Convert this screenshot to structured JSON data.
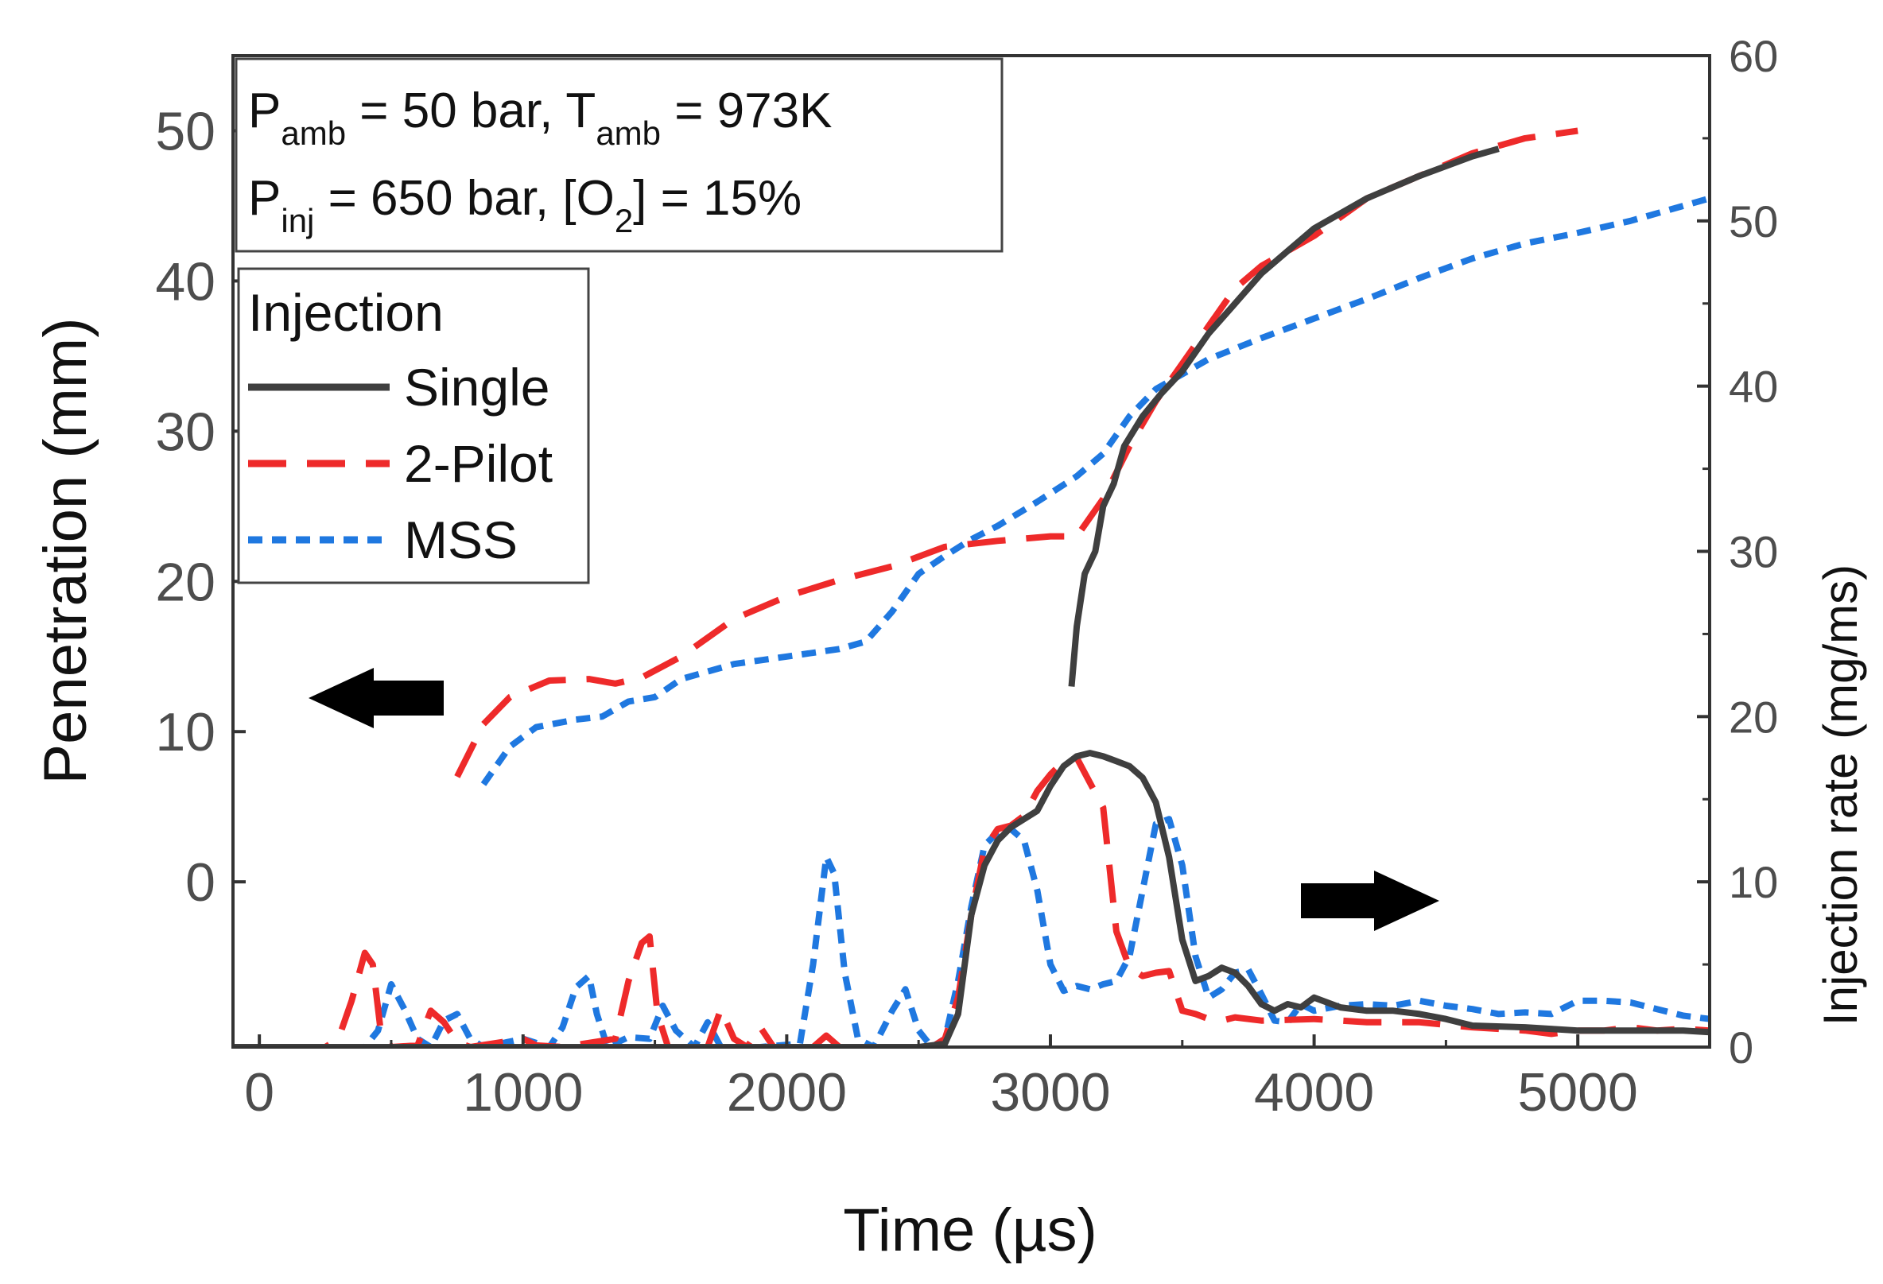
{
  "chart_data": {
    "type": "line",
    "title": "",
    "xlabel": "Time (µs)",
    "ylabel_left": "Penetration (mm)",
    "ylabel_right": "Injection rate (mg/ms)",
    "xlim": [
      -100,
      5500
    ],
    "ylim_left": [
      -11,
      55
    ],
    "ylim_right": [
      0,
      60
    ],
    "x_ticks": [
      0,
      1000,
      2000,
      3000,
      4000,
      5000
    ],
    "y_left_ticks": [
      0,
      10,
      20,
      30,
      40,
      50
    ],
    "y_right_ticks": [
      0,
      10,
      20,
      30,
      40,
      50,
      60
    ],
    "grid": false,
    "conditions": {
      "line1": {
        "a": "P",
        "a_sub": "amb",
        "b": " = 50 bar, T",
        "b_sub": "amb",
        "c": " = 973K"
      },
      "line2": {
        "a": "P",
        "a_sub": "inj",
        "b": " = 650 bar, [O",
        "b_sub": "2",
        "c": "] = 15%"
      }
    },
    "legend": {
      "title": "Injection",
      "position": "upper-left",
      "entries": [
        {
          "name": "Single",
          "color": "#3f3f3f",
          "dash": "solid"
        },
        {
          "name": "2-Pilot",
          "color": "#ee2a2a",
          "dash": "dashed"
        },
        {
          "name": "MSS",
          "color": "#1f78e0",
          "dash": "dotted"
        }
      ]
    },
    "annotations": [
      {
        "type": "arrow",
        "direction": "left",
        "meaning": "left axis"
      },
      {
        "type": "arrow",
        "direction": "right",
        "meaning": "right axis"
      }
    ],
    "series": [
      {
        "name": "Single",
        "axis": "left",
        "kind": "penetration",
        "points": [
          [
            3080,
            13
          ],
          [
            3100,
            17
          ],
          [
            3130,
            20.5
          ],
          [
            3170,
            22
          ],
          [
            3200,
            25
          ],
          [
            3240,
            26.5
          ],
          [
            3280,
            29
          ],
          [
            3350,
            31
          ],
          [
            3420,
            32.5
          ],
          [
            3500,
            34
          ],
          [
            3600,
            36.5
          ],
          [
            3700,
            38.5
          ],
          [
            3800,
            40.5
          ],
          [
            3900,
            42
          ],
          [
            4000,
            43.5
          ],
          [
            4200,
            45.5
          ],
          [
            4400,
            47
          ],
          [
            4600,
            48.3
          ],
          [
            4700,
            48.8
          ]
        ]
      },
      {
        "name": "2-Pilot",
        "axis": "left",
        "kind": "penetration",
        "points": [
          [
            750,
            7
          ],
          [
            850,
            10.5
          ],
          [
            950,
            12.3
          ],
          [
            1100,
            13.4
          ],
          [
            1250,
            13.5
          ],
          [
            1350,
            13.2
          ],
          [
            1450,
            13.6
          ],
          [
            1600,
            15
          ],
          [
            1800,
            17.5
          ],
          [
            2000,
            19
          ],
          [
            2200,
            20.1
          ],
          [
            2400,
            21
          ],
          [
            2600,
            22.3
          ],
          [
            2800,
            22.7
          ],
          [
            3000,
            23
          ],
          [
            3100,
            23
          ],
          [
            3200,
            25.5
          ],
          [
            3300,
            29
          ],
          [
            3400,
            32
          ],
          [
            3500,
            34.5
          ],
          [
            3600,
            37
          ],
          [
            3700,
            39.5
          ],
          [
            3800,
            41
          ],
          [
            4000,
            43
          ],
          [
            4200,
            45.5
          ],
          [
            4400,
            47
          ],
          [
            4600,
            48.5
          ],
          [
            4800,
            49.5
          ],
          [
            5000,
            50
          ]
        ]
      },
      {
        "name": "MSS",
        "axis": "left",
        "kind": "penetration",
        "points": [
          [
            850,
            6.5
          ],
          [
            950,
            9
          ],
          [
            1050,
            10.3
          ],
          [
            1200,
            10.8
          ],
          [
            1300,
            11
          ],
          [
            1400,
            12
          ],
          [
            1500,
            12.3
          ],
          [
            1600,
            13.5
          ],
          [
            1800,
            14.5
          ],
          [
            2000,
            15
          ],
          [
            2200,
            15.5
          ],
          [
            2300,
            16
          ],
          [
            2400,
            18
          ],
          [
            2500,
            20.5
          ],
          [
            2600,
            21.7
          ],
          [
            2700,
            22.8
          ],
          [
            2800,
            23.7
          ],
          [
            2950,
            25.3
          ],
          [
            3100,
            27
          ],
          [
            3200,
            28.5
          ],
          [
            3300,
            31
          ],
          [
            3400,
            32.8
          ],
          [
            3500,
            33.8
          ],
          [
            3600,
            34.8
          ],
          [
            3800,
            36.2
          ],
          [
            4000,
            37.5
          ],
          [
            4200,
            38.8
          ],
          [
            4400,
            40.2
          ],
          [
            4600,
            41.5
          ],
          [
            4800,
            42.5
          ],
          [
            5000,
            43.2
          ],
          [
            5200,
            44
          ],
          [
            5500,
            45.5
          ]
        ]
      },
      {
        "name": "Single",
        "axis": "right",
        "kind": "rate",
        "points": [
          [
            -100,
            0
          ],
          [
            2500,
            0
          ],
          [
            2600,
            0.2
          ],
          [
            2650,
            2
          ],
          [
            2700,
            8
          ],
          [
            2750,
            11
          ],
          [
            2800,
            12.5
          ],
          [
            2850,
            13.3
          ],
          [
            2900,
            13.8
          ],
          [
            2950,
            14.3
          ],
          [
            3000,
            15.8
          ],
          [
            3050,
            17
          ],
          [
            3100,
            17.6
          ],
          [
            3150,
            17.8
          ],
          [
            3200,
            17.6
          ],
          [
            3250,
            17.3
          ],
          [
            3300,
            17
          ],
          [
            3350,
            16.3
          ],
          [
            3400,
            14.8
          ],
          [
            3450,
            11.5
          ],
          [
            3500,
            6.5
          ],
          [
            3550,
            4
          ],
          [
            3600,
            4.3
          ],
          [
            3650,
            4.8
          ],
          [
            3700,
            4.5
          ],
          [
            3750,
            3.7
          ],
          [
            3800,
            2.6
          ],
          [
            3850,
            2.2
          ],
          [
            3900,
            2.6
          ],
          [
            3950,
            2.4
          ],
          [
            4000,
            3
          ],
          [
            4100,
            2.4
          ],
          [
            4200,
            2.2
          ],
          [
            4300,
            2.2
          ],
          [
            4400,
            2
          ],
          [
            4500,
            1.7
          ],
          [
            4600,
            1.3
          ],
          [
            4800,
            1.2
          ],
          [
            5000,
            1
          ],
          [
            5200,
            1
          ],
          [
            5400,
            1
          ],
          [
            5500,
            0.9
          ]
        ]
      },
      {
        "name": "2-Pilot",
        "axis": "right",
        "kind": "rate",
        "points": [
          [
            -100,
            0
          ],
          [
            250,
            0
          ],
          [
            300,
            0.5
          ],
          [
            350,
            2.8
          ],
          [
            400,
            5.7
          ],
          [
            430,
            5
          ],
          [
            460,
            1
          ],
          [
            500,
            0
          ],
          [
            600,
            0.1
          ],
          [
            650,
            2.2
          ],
          [
            700,
            1.5
          ],
          [
            750,
            0.3
          ],
          [
            800,
            0
          ],
          [
            1000,
            0.5
          ],
          [
            1050,
            0.1
          ],
          [
            1150,
            0
          ],
          [
            1350,
            0.5
          ],
          [
            1400,
            4
          ],
          [
            1450,
            6.3
          ],
          [
            1480,
            6.7
          ],
          [
            1510,
            2
          ],
          [
            1550,
            0
          ],
          [
            1700,
            0
          ],
          [
            1750,
            2.3
          ],
          [
            1800,
            0.5
          ],
          [
            1850,
            0
          ],
          [
            1900,
            1.2
          ],
          [
            1950,
            0
          ],
          [
            2100,
            0
          ],
          [
            2150,
            0.7
          ],
          [
            2200,
            0
          ],
          [
            2550,
            0
          ],
          [
            2600,
            0.5
          ],
          [
            2650,
            3
          ],
          [
            2700,
            8
          ],
          [
            2750,
            12
          ],
          [
            2800,
            13.2
          ],
          [
            2850,
            13.4
          ],
          [
            2900,
            14
          ],
          [
            2950,
            15.5
          ],
          [
            3000,
            16.5
          ],
          [
            3050,
            17.3
          ],
          [
            3100,
            17.5
          ],
          [
            3150,
            16
          ],
          [
            3200,
            14.5
          ],
          [
            3250,
            7
          ],
          [
            3300,
            4.8
          ],
          [
            3350,
            4.3
          ],
          [
            3400,
            4.5
          ],
          [
            3450,
            4.6
          ],
          [
            3500,
            2.2
          ],
          [
            3550,
            2
          ],
          [
            3600,
            1.7
          ],
          [
            3650,
            1.6
          ],
          [
            3700,
            1.8
          ],
          [
            3800,
            1.6
          ],
          [
            4000,
            1.7
          ],
          [
            4100,
            1.6
          ],
          [
            4200,
            1.5
          ],
          [
            4400,
            1.5
          ],
          [
            4600,
            1.2
          ],
          [
            4800,
            1
          ],
          [
            4900,
            0.8
          ],
          [
            5000,
            1
          ],
          [
            5100,
            1
          ],
          [
            5200,
            1.2
          ],
          [
            5300,
            1
          ],
          [
            5400,
            1.1
          ],
          [
            5500,
            1
          ]
        ]
      },
      {
        "name": "MSS",
        "axis": "right",
        "kind": "rate",
        "points": [
          [
            -100,
            0
          ],
          [
            400,
            0
          ],
          [
            450,
            1
          ],
          [
            500,
            3.8
          ],
          [
            550,
            2.3
          ],
          [
            600,
            0.5
          ],
          [
            650,
            0
          ],
          [
            700,
            1.6
          ],
          [
            750,
            2
          ],
          [
            800,
            0.5
          ],
          [
            850,
            0
          ],
          [
            1000,
            0.5
          ],
          [
            1100,
            0
          ],
          [
            1150,
            1.2
          ],
          [
            1200,
            3.6
          ],
          [
            1250,
            4.3
          ],
          [
            1280,
            2
          ],
          [
            1320,
            0
          ],
          [
            1400,
            0.6
          ],
          [
            1480,
            0.5
          ],
          [
            1530,
            2.5
          ],
          [
            1580,
            1
          ],
          [
            1650,
            0
          ],
          [
            1700,
            1.5
          ],
          [
            1750,
            0
          ],
          [
            1900,
            0
          ],
          [
            2050,
            0.2
          ],
          [
            2100,
            5
          ],
          [
            2150,
            11.5
          ],
          [
            2180,
            10.5
          ],
          [
            2220,
            4.5
          ],
          [
            2270,
            0.5
          ],
          [
            2330,
            0
          ],
          [
            2400,
            2.2
          ],
          [
            2450,
            3.5
          ],
          [
            2500,
            1
          ],
          [
            2550,
            0
          ],
          [
            2600,
            0.5
          ],
          [
            2650,
            4
          ],
          [
            2700,
            8.5
          ],
          [
            2750,
            12.2
          ],
          [
            2800,
            13
          ],
          [
            2850,
            13.2
          ],
          [
            2900,
            12.5
          ],
          [
            2950,
            9.5
          ],
          [
            3000,
            5
          ],
          [
            3050,
            3.4
          ],
          [
            3100,
            3.7
          ],
          [
            3150,
            3.5
          ],
          [
            3200,
            3.8
          ],
          [
            3250,
            4
          ],
          [
            3300,
            5.5
          ],
          [
            3350,
            9.5
          ],
          [
            3400,
            13.5
          ],
          [
            3450,
            13.8
          ],
          [
            3500,
            11
          ],
          [
            3550,
            5.5
          ],
          [
            3600,
            3
          ],
          [
            3650,
            3.5
          ],
          [
            3700,
            4.5
          ],
          [
            3750,
            4.7
          ],
          [
            3800,
            3.2
          ],
          [
            3850,
            1.6
          ],
          [
            3900,
            1.5
          ],
          [
            3950,
            2.6
          ],
          [
            4000,
            2.2
          ],
          [
            4100,
            2.5
          ],
          [
            4200,
            2.6
          ],
          [
            4300,
            2.5
          ],
          [
            4400,
            2.8
          ],
          [
            4500,
            2.5
          ],
          [
            4600,
            2.3
          ],
          [
            4700,
            2
          ],
          [
            4800,
            2.1
          ],
          [
            4900,
            2
          ],
          [
            5000,
            2.8
          ],
          [
            5100,
            2.8
          ],
          [
            5200,
            2.7
          ],
          [
            5300,
            2.3
          ],
          [
            5400,
            1.9
          ],
          [
            5500,
            1.7
          ]
        ]
      }
    ]
  }
}
